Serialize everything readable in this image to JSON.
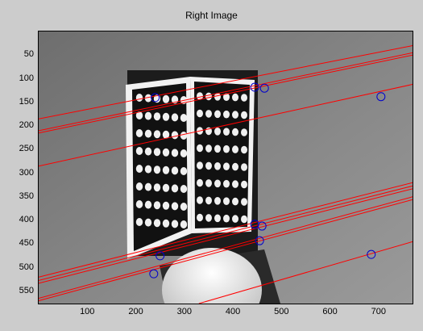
{
  "window": {
    "title": "Right Image"
  },
  "axes": {
    "xticks": [
      "100",
      "200",
      "300",
      "400",
      "500",
      "600",
      "700"
    ],
    "yticks": [
      "50",
      "100",
      "150",
      "200",
      "250",
      "300",
      "350",
      "400",
      "450",
      "500",
      "550"
    ],
    "xlim": [
      0,
      770
    ],
    "ylim": [
      0,
      576
    ]
  },
  "colors": {
    "epipolar_line": "#ff0000",
    "marker": "#0000cc",
    "background": "#cccccc"
  },
  "chart_data": {
    "type": "scatter",
    "title": "Right Image",
    "xlim": [
      0,
      770
    ],
    "ylim": [
      576,
      0
    ],
    "grid": false,
    "points": [
      {
        "x": 240,
        "y": 140
      },
      {
        "x": 445,
        "y": 118
      },
      {
        "x": 465,
        "y": 120
      },
      {
        "x": 705,
        "y": 138
      },
      {
        "x": 445,
        "y": 408
      },
      {
        "x": 460,
        "y": 412
      },
      {
        "x": 455,
        "y": 443
      },
      {
        "x": 250,
        "y": 475
      },
      {
        "x": 685,
        "y": 472
      },
      {
        "x": 237,
        "y": 513
      }
    ],
    "lines": [
      {
        "x": [
          0,
          770
        ],
        "y": [
          185,
          30
        ]
      },
      {
        "x": [
          0,
          770
        ],
        "y": [
          210,
          45
        ]
      },
      {
        "x": [
          0,
          770
        ],
        "y": [
          215,
          50
        ]
      },
      {
        "x": [
          0,
          770
        ],
        "y": [
          285,
          112
        ]
      },
      {
        "x": [
          0,
          770
        ],
        "y": [
          520,
          320
        ]
      },
      {
        "x": [
          0,
          770
        ],
        "y": [
          527,
          327
        ]
      },
      {
        "x": [
          0,
          770
        ],
        "y": [
          533,
          333
        ]
      },
      {
        "x": [
          0,
          770
        ],
        "y": [
          565,
          350
        ]
      },
      {
        "x": [
          0,
          770
        ],
        "y": [
          570,
          356
        ]
      },
      {
        "x": [
          330,
          770
        ],
        "y": [
          576,
          445
        ]
      }
    ]
  }
}
